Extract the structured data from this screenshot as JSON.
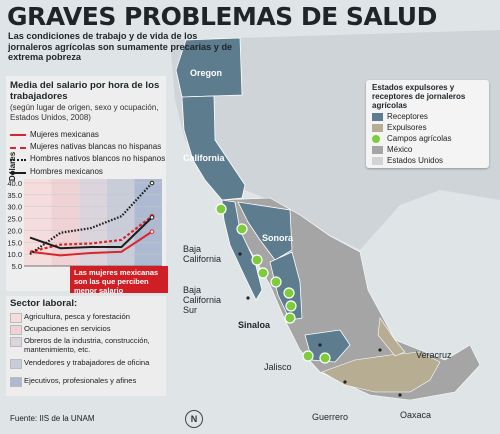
{
  "header": {
    "title": "GRAVES PROBLEMAS DE SALUD",
    "subtitle": "Las condiciones de trabajo y de vida de los jornaleros agrícolas son sumamente precarias y de extrema pobreza"
  },
  "chart_panel": {
    "title": "Media del salario por hora de los trabajadores",
    "note": "(según lugar de origen, sexo y ocupación, Estados Unidos, 2008)",
    "callout": "Las mujeres mexicanas son las que perciben menor salario"
  },
  "chart_data": {
    "type": "line",
    "ylabel": "Dólares",
    "yticks": [
      "40.0",
      "35.0",
      "30.0",
      "25.0",
      "20.0",
      "15.0",
      "10.0",
      "5.0"
    ],
    "ylim": [
      5,
      40
    ],
    "x": [
      1,
      2,
      3,
      4,
      5
    ],
    "series": [
      {
        "name": "Mujeres mexicanas",
        "color": "#d7262c",
        "style": "solid",
        "values": [
          11,
          9.5,
          10.5,
          11,
          19.5
        ]
      },
      {
        "name": "Mujeres nativas blancas no hispanas",
        "color": "#d7262c",
        "style": "dashed",
        "values": [
          11,
          14,
          14.5,
          16,
          26
        ]
      },
      {
        "name": "Hombres nativos blancos no hispanos",
        "color": "#1d1d1d",
        "style": "dotted",
        "values": [
          10,
          19,
          21,
          26,
          40
        ]
      },
      {
        "name": "Hombres mexicanos",
        "color": "#1d1d1d",
        "style": "solid",
        "values": [
          17,
          12.5,
          13,
          13,
          25.5
        ]
      }
    ]
  },
  "sector": {
    "title": "Sector laboral:",
    "items": [
      {
        "label": "Agricultura, pesca y forestación",
        "color": "#f6dddd"
      },
      {
        "label": "Ocupaciones en servicios",
        "color": "#efd2d4"
      },
      {
        "label": "Obreros de la industria, construcción, mantenimiento, etc.",
        "color": "#dcd4dc"
      },
      {
        "label": "Vendedores y trabajadores de oficina",
        "color": "#c9cdd9"
      },
      {
        "label": "Ejecutivos, profesionales y afines",
        "color": "#aebad1"
      }
    ]
  },
  "source": "Fuente: IIS de la UNAM",
  "map_legend": {
    "title": "Estados expulsores y receptores de jornaleros agrícolas",
    "items": [
      {
        "label": "Receptores",
        "color": "#5d7c8e"
      },
      {
        "label": "Expulsores",
        "color": "#b7ad93"
      },
      {
        "label": "Campos agrícolas",
        "color": "#7ccc3c"
      },
      {
        "label": "México",
        "color": "#a5a5a5"
      },
      {
        "label": "Estados Unidos",
        "color": "#d0d4d7"
      }
    ]
  },
  "places": {
    "oregon": "Oregon",
    "california": "California",
    "sonora": "Sonora",
    "baja_california": "Baja California",
    "baja_california_sur": "Baja California Sur",
    "sinaloa": "Sinaloa",
    "jalisco": "Jalisco",
    "veracruz": "Veracruz",
    "guerrero": "Guerrero",
    "oaxaca": "Oaxaca"
  },
  "compass": "N"
}
